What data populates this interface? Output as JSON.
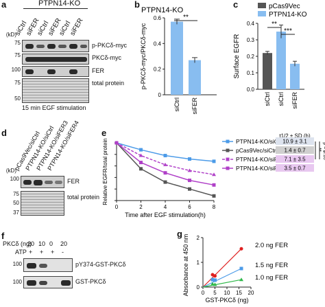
{
  "panels": {
    "a": {
      "label": "a",
      "header": "PTPN14-KO",
      "lanes": [
        "siCtrl",
        "siFER",
        "siCtrl",
        "siFER",
        "siCtrl",
        "siFER"
      ],
      "kd_unit": "(kD)",
      "kd_markers": [
        "75",
        "75",
        "100",
        "75",
        "50"
      ],
      "rows": [
        "p-PKCδ-myc",
        "PKCδ-myc",
        "FER",
        "total protein"
      ],
      "footer": "15 min EGF stimulation"
    },
    "b": {
      "label": "b",
      "title": "PTPN14-KO",
      "significance": "**"
    },
    "c": {
      "label": "c",
      "significance_1": "**",
      "significance_2": "***"
    },
    "d": {
      "label": "d",
      "lanes": [
        "pCas9Vec/siCtrl",
        "PTPN14-KO/siCtrl",
        "PTPN14-KO/siFER3",
        "PTPN14-KO/siFER4"
      ],
      "kd_unit": "(kD)",
      "kd_markers": [
        "100",
        "75",
        "50",
        "37"
      ],
      "rows": [
        "FER",
        "total protein"
      ]
    },
    "e": {
      "label": "e",
      "table_header": "t1/2 ± SD (h)",
      "half_lives": [
        "10.9 ± 3.1",
        "1.4 ± 0.7",
        "7.1 ± 3.5",
        "3.5 ± 0.7"
      ],
      "sig_1": "**",
      "sig_2": "*",
      "p_value": "p = 0.16"
    },
    "f": {
      "label": "f",
      "pkc_label": "PKCδ (ng)",
      "pkc_values": [
        "20",
        "10",
        "0",
        "20"
      ],
      "atp_label": "ATP",
      "atp_values": [
        "+",
        "+",
        "+",
        "-"
      ],
      "kd_markers": [
        "100",
        "100"
      ],
      "rows": [
        "pY374-GST-PKCδ",
        "GST-PKCδ"
      ]
    },
    "g": {
      "label": "g"
    }
  },
  "colors": {
    "dark_gray": "#555555",
    "light_blue": "#88bdf0",
    "red": "#e02020",
    "blue": "#4c9be8",
    "green": "#2fb84a",
    "purple": "#b040c8",
    "cell_gray": "#cfcfcf",
    "cell_lavender": "#e8c8f0"
  },
  "chart_data": [
    {
      "type": "bar",
      "panel": "b",
      "title": "PTPN14-KO",
      "categories": [
        "siCtrl",
        "siFER"
      ],
      "values": [
        0.57,
        0.27
      ],
      "errors": [
        0.02,
        0.02
      ],
      "ylabel": "p-PKCδ-myc/PKCδ-myc",
      "ylim": [
        0,
        0.6
      ],
      "yticks": [
        "0",
        "0.2",
        "0.4",
        "0.6"
      ]
    },
    {
      "type": "bar",
      "panel": "c",
      "categories": [
        "siCtrl",
        "siCtrl",
        "siFER"
      ],
      "series": [
        {
          "name": "pCas9Vec",
          "values": [
            0.22,
            null,
            null
          ]
        },
        {
          "name": "PTPN14-KO",
          "values": [
            null,
            0.35,
            0.155
          ]
        }
      ],
      "values": [
        0.22,
        0.35,
        0.155
      ],
      "errors": [
        0.01,
        0.04,
        0.015
      ],
      "ylabel": "Surface EGFR",
      "ylim": [
        0,
        0.4
      ],
      "yticks": [
        "0.0",
        "0.1",
        "0.2",
        "0.3",
        "0.4"
      ],
      "legend": [
        "pCas9Vec",
        "PTPN14-KO"
      ]
    },
    {
      "type": "line",
      "panel": "e",
      "xlabel": "Time after EGF stimulation(h)",
      "ylabel": "Relative EGFR/total protein",
      "x": [
        0,
        2,
        4,
        6,
        8
      ],
      "xlim": [
        0,
        8
      ],
      "ylim": [
        0,
        1.0
      ],
      "xticks": [
        "0",
        "2",
        "4",
        "6",
        "8"
      ],
      "yticks": [
        "0",
        "0.2",
        "0.4",
        "0.6",
        "0.8",
        "1.0"
      ],
      "series": [
        {
          "name": "PTPN14-KO/siCtrl",
          "values": [
            1.0,
            0.88,
            0.78,
            0.72,
            0.68
          ]
        },
        {
          "name": "pCas9Vec/siCtrl",
          "values": [
            1.0,
            0.55,
            0.32,
            0.2,
            0.08
          ]
        },
        {
          "name": "PTPN14-KO/siFER3",
          "values": [
            1.0,
            0.78,
            0.62,
            0.52,
            0.45
          ]
        },
        {
          "name": "PTPN14-KO/siFER4",
          "values": [
            1.0,
            0.66,
            0.48,
            0.35,
            0.27
          ]
        }
      ]
    },
    {
      "type": "scatter",
      "panel": "g",
      "xlabel": "GST-PKCδ (ng)",
      "ylabel": "Absorbance at 450 nm",
      "xlim": [
        0,
        20
      ],
      "ylim": [
        0,
        2
      ],
      "xticks": [
        "0",
        "5",
        "10",
        "15",
        "20"
      ],
      "yticks": [
        "0",
        "1",
        "2"
      ],
      "series": [
        {
          "name": "2.0 ng FER",
          "x": [
            4,
            5,
            16
          ],
          "y": [
            0.5,
            0.45,
            1.55
          ]
        },
        {
          "name": "1.5 ng FER",
          "x": [
            4,
            5,
            16
          ],
          "y": [
            0.3,
            0.28,
            0.75
          ]
        },
        {
          "name": "1.0 ng FER",
          "x": [
            4,
            5,
            16
          ],
          "y": [
            0.12,
            0.1,
            0.3
          ]
        }
      ]
    }
  ]
}
